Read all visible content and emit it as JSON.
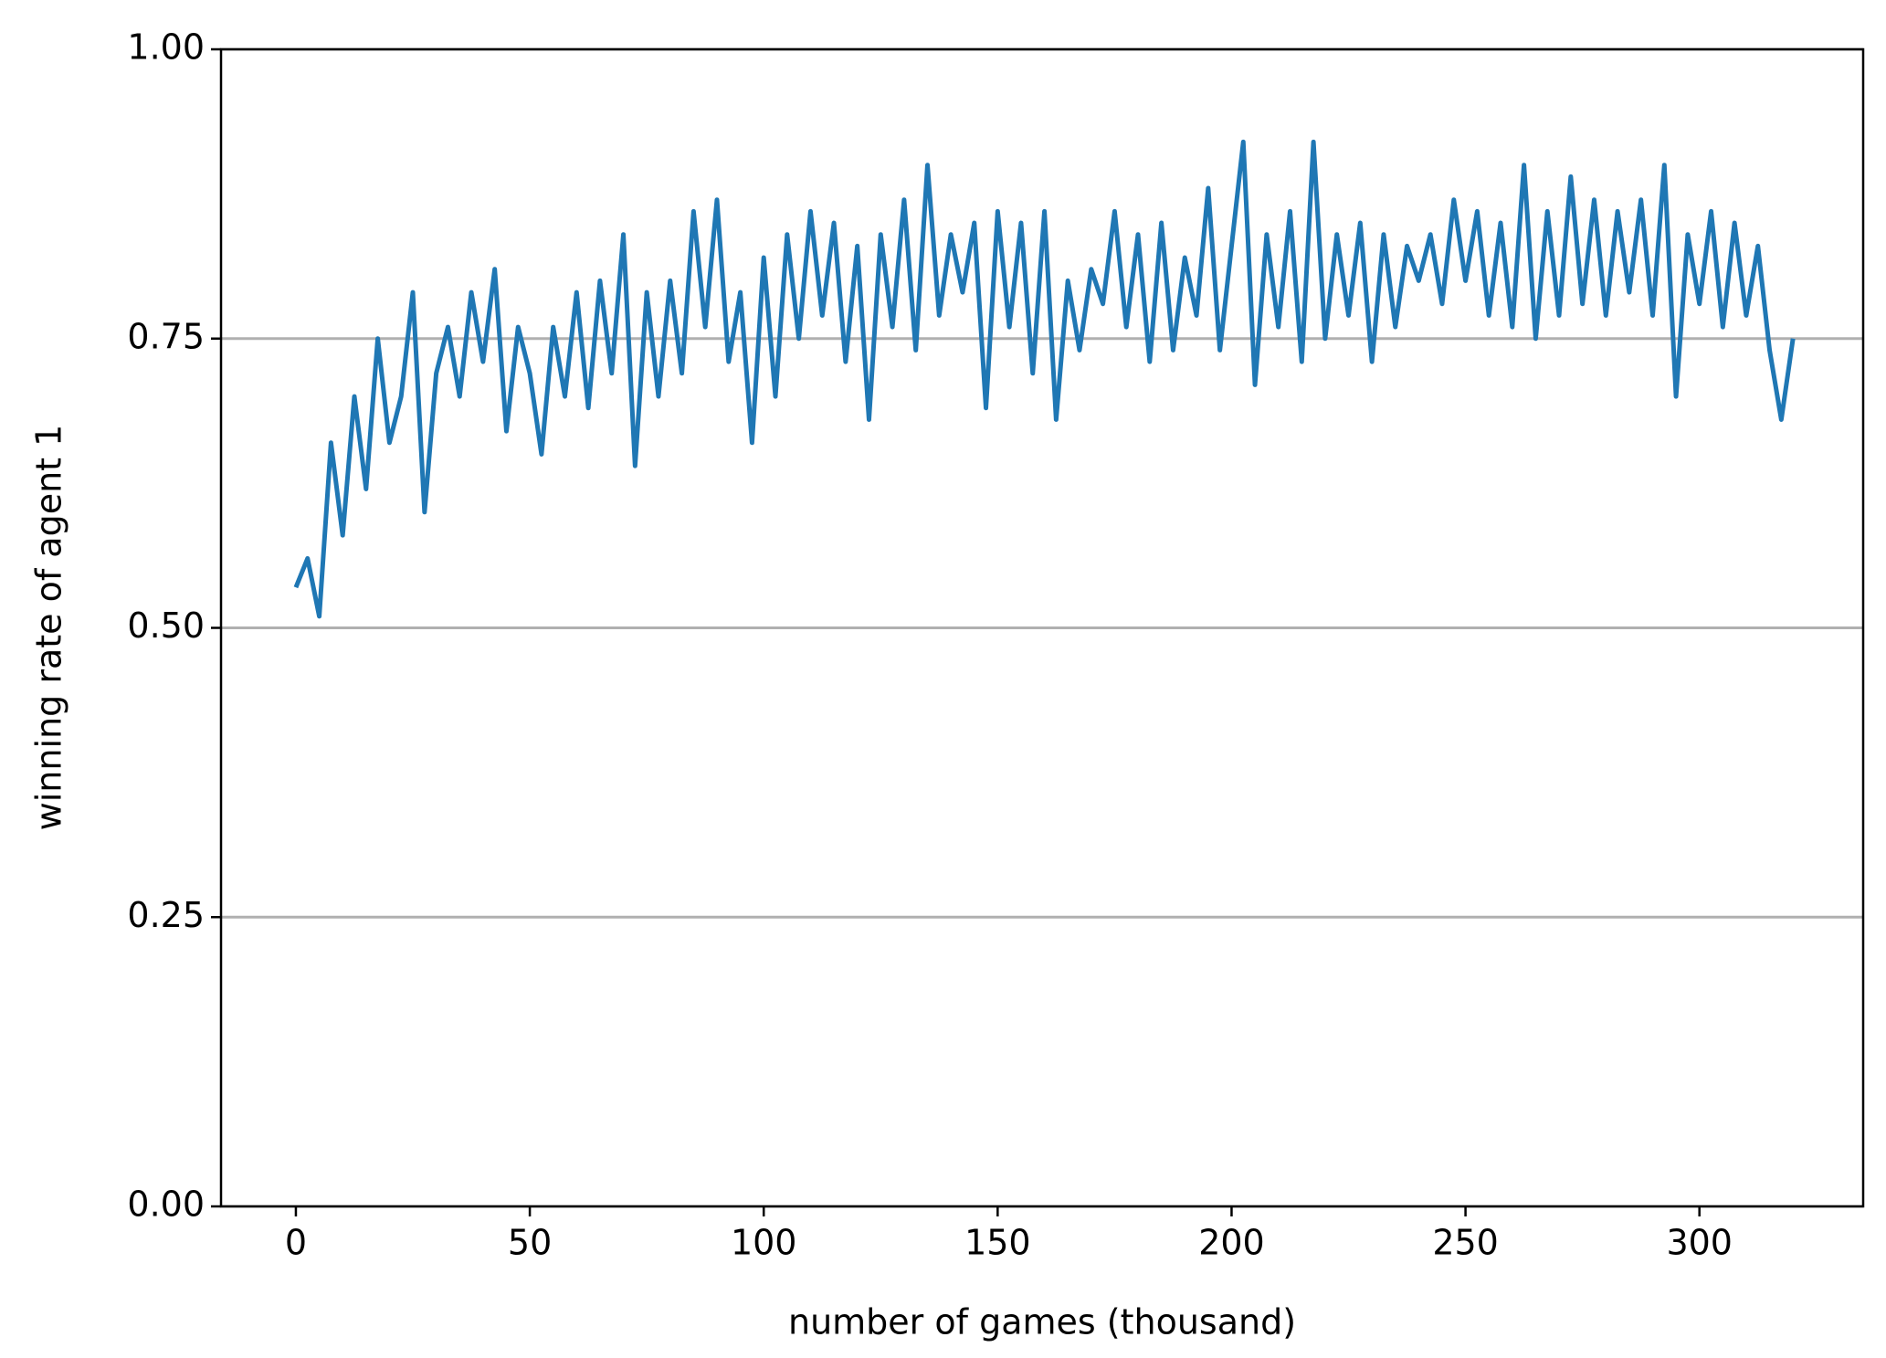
{
  "chart_data": {
    "type": "line",
    "xlabel": "number of games (thousand)",
    "ylabel": "winning rate of agent 1",
    "x": [
      0,
      2.5,
      5,
      7.5,
      10,
      12.5,
      15,
      17.5,
      20,
      22.5,
      25,
      27.5,
      30,
      32.5,
      35,
      37.5,
      40,
      42.5,
      45,
      47.5,
      50,
      52.5,
      55,
      57.5,
      60,
      62.5,
      65,
      67.5,
      70,
      72.5,
      75,
      77.5,
      80,
      82.5,
      85,
      87.5,
      90,
      92.5,
      95,
      97.5,
      100,
      102.5,
      105,
      107.5,
      110,
      112.5,
      115,
      117.5,
      120,
      122.5,
      125,
      127.5,
      130,
      132.5,
      135,
      137.5,
      140,
      142.5,
      145,
      147.5,
      150,
      152.5,
      155,
      157.5,
      160,
      162.5,
      165,
      167.5,
      170,
      172.5,
      175,
      177.5,
      180,
      182.5,
      185,
      187.5,
      190,
      192.5,
      195,
      197.5,
      200,
      202.5,
      205,
      207.5,
      210,
      212.5,
      215,
      217.5,
      220,
      222.5,
      225,
      227.5,
      230,
      232.5,
      235,
      237.5,
      240,
      242.5,
      245,
      247.5,
      250,
      252.5,
      255,
      257.5,
      260,
      262.5,
      265,
      267.5,
      270,
      272.5,
      275,
      277.5,
      280,
      282.5,
      285,
      287.5,
      290,
      292.5,
      295,
      297.5,
      300,
      302.5,
      305,
      307.5,
      310,
      312.5,
      315,
      317.5,
      320
    ],
    "series": [
      {
        "color": "#1f77b4",
        "values": [
          0.535,
          0.56,
          0.51,
          0.66,
          0.58,
          0.7,
          0.62,
          0.75,
          0.66,
          0.7,
          0.79,
          0.6,
          0.72,
          0.76,
          0.7,
          0.79,
          0.73,
          0.81,
          0.67,
          0.76,
          0.72,
          0.65,
          0.76,
          0.7,
          0.79,
          0.69,
          0.8,
          0.72,
          0.84,
          0.64,
          0.79,
          0.7,
          0.8,
          0.72,
          0.86,
          0.76,
          0.87,
          0.73,
          0.79,
          0.66,
          0.82,
          0.7,
          0.84,
          0.75,
          0.86,
          0.77,
          0.85,
          0.73,
          0.83,
          0.68,
          0.84,
          0.76,
          0.87,
          0.74,
          0.9,
          0.77,
          0.84,
          0.79,
          0.85,
          0.69,
          0.86,
          0.76,
          0.85,
          0.72,
          0.86,
          0.68,
          0.8,
          0.74,
          0.81,
          0.78,
          0.86,
          0.76,
          0.84,
          0.73,
          0.85,
          0.74,
          0.82,
          0.77,
          0.88,
          0.74,
          0.83,
          0.92,
          0.71,
          0.84,
          0.76,
          0.86,
          0.73,
          0.92,
          0.75,
          0.84,
          0.77,
          0.85,
          0.73,
          0.84,
          0.76,
          0.83,
          0.8,
          0.84,
          0.78,
          0.87,
          0.8,
          0.86,
          0.77,
          0.85,
          0.76,
          0.9,
          0.75,
          0.86,
          0.77,
          0.89,
          0.78,
          0.87,
          0.77,
          0.86,
          0.79,
          0.87,
          0.77,
          0.9,
          0.7,
          0.84,
          0.78,
          0.86,
          0.76,
          0.85,
          0.77,
          0.83,
          0.74,
          0.68,
          0.75
        ]
      }
    ],
    "xlim": [
      -16,
      335
    ],
    "xticks": [
      0,
      50,
      100,
      150,
      200,
      250,
      300
    ],
    "ylim": [
      0,
      1
    ],
    "yticks": [
      {
        "value": 0,
        "label": "0.00"
      },
      {
        "value": 0.25,
        "label": "0.25"
      },
      {
        "value": 0.5,
        "label": "0.50"
      },
      {
        "value": 0.75,
        "label": "0.75"
      },
      {
        "value": 1,
        "label": "1.00"
      }
    ],
    "grid": "y",
    "grid_color": "#b0b0b0"
  }
}
